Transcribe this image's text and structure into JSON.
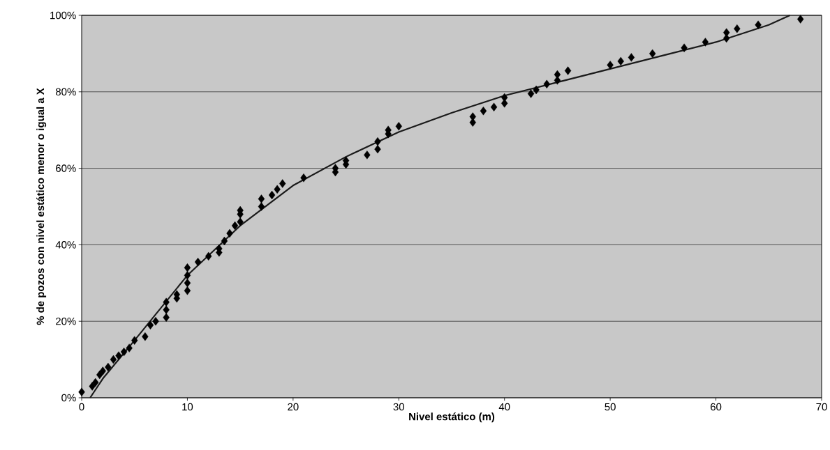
{
  "chart_data": {
    "type": "scatter",
    "xlabel": "Nivel estático (m)",
    "ylabel": "% de pozos con nivel estático menor o igual a X",
    "xlim": [
      0,
      70
    ],
    "xticks": [
      0,
      10,
      20,
      30,
      40,
      50,
      60,
      70
    ],
    "ylim": [
      0,
      100
    ],
    "yticks": [
      {
        "value": 0,
        "label": "0%"
      },
      {
        "value": 20,
        "label": "20%"
      },
      {
        "value": 40,
        "label": "40%"
      },
      {
        "value": 60,
        "label": "60%"
      },
      {
        "value": 80,
        "label": "80%"
      },
      {
        "value": 100,
        "label": "100%"
      }
    ],
    "grid": "y",
    "series": [
      {
        "type": "scatter",
        "marker": "diamond",
        "color": "#000000",
        "x": [
          0,
          1,
          1.3,
          1.7,
          2,
          2.5,
          3,
          3.5,
          4,
          4.5,
          5,
          6,
          6.5,
          7,
          8,
          8,
          8,
          9,
          9,
          10,
          10,
          10,
          10,
          11,
          12,
          13,
          13,
          13.5,
          14,
          14.5,
          15,
          15,
          15,
          17,
          17,
          18,
          18.5,
          19,
          21,
          24,
          24,
          25,
          25,
          27,
          28,
          28,
          29,
          29,
          30,
          37,
          37,
          38,
          39,
          40,
          40,
          42.5,
          43,
          44,
          45,
          45,
          46,
          50,
          51,
          52,
          54,
          57,
          59,
          61,
          61,
          62,
          64,
          68
        ],
        "values": [
          1.5,
          3,
          4,
          6,
          7,
          8,
          10,
          11,
          12,
          13,
          15,
          16,
          19,
          20,
          21,
          23,
          25,
          26,
          27,
          28,
          30,
          32,
          34,
          35.5,
          37,
          38,
          39,
          41,
          43,
          45,
          46,
          48,
          49,
          50,
          52,
          53,
          54.5,
          56,
          57.5,
          59,
          60,
          61,
          62,
          63.5,
          65,
          67,
          69,
          70,
          71,
          72,
          73.5,
          75,
          76,
          77,
          78.5,
          79.5,
          80.5,
          82,
          83,
          84.5,
          85.5,
          87,
          88,
          89,
          90,
          91.5,
          93,
          94,
          95.5,
          96.5,
          97.5,
          99
        ]
      },
      {
        "type": "line",
        "marker": "none",
        "line_style": "solid",
        "color": "#1a1a1a",
        "x": [
          0.8,
          2,
          5,
          10,
          15,
          20,
          25,
          30,
          35,
          40,
          45,
          50,
          55,
          60,
          65,
          67
        ],
        "values": [
          0,
          5,
          15,
          32,
          45,
          55.5,
          63,
          69.5,
          74.5,
          79,
          82.5,
          86,
          89.5,
          93,
          97.5,
          100
        ]
      }
    ]
  }
}
